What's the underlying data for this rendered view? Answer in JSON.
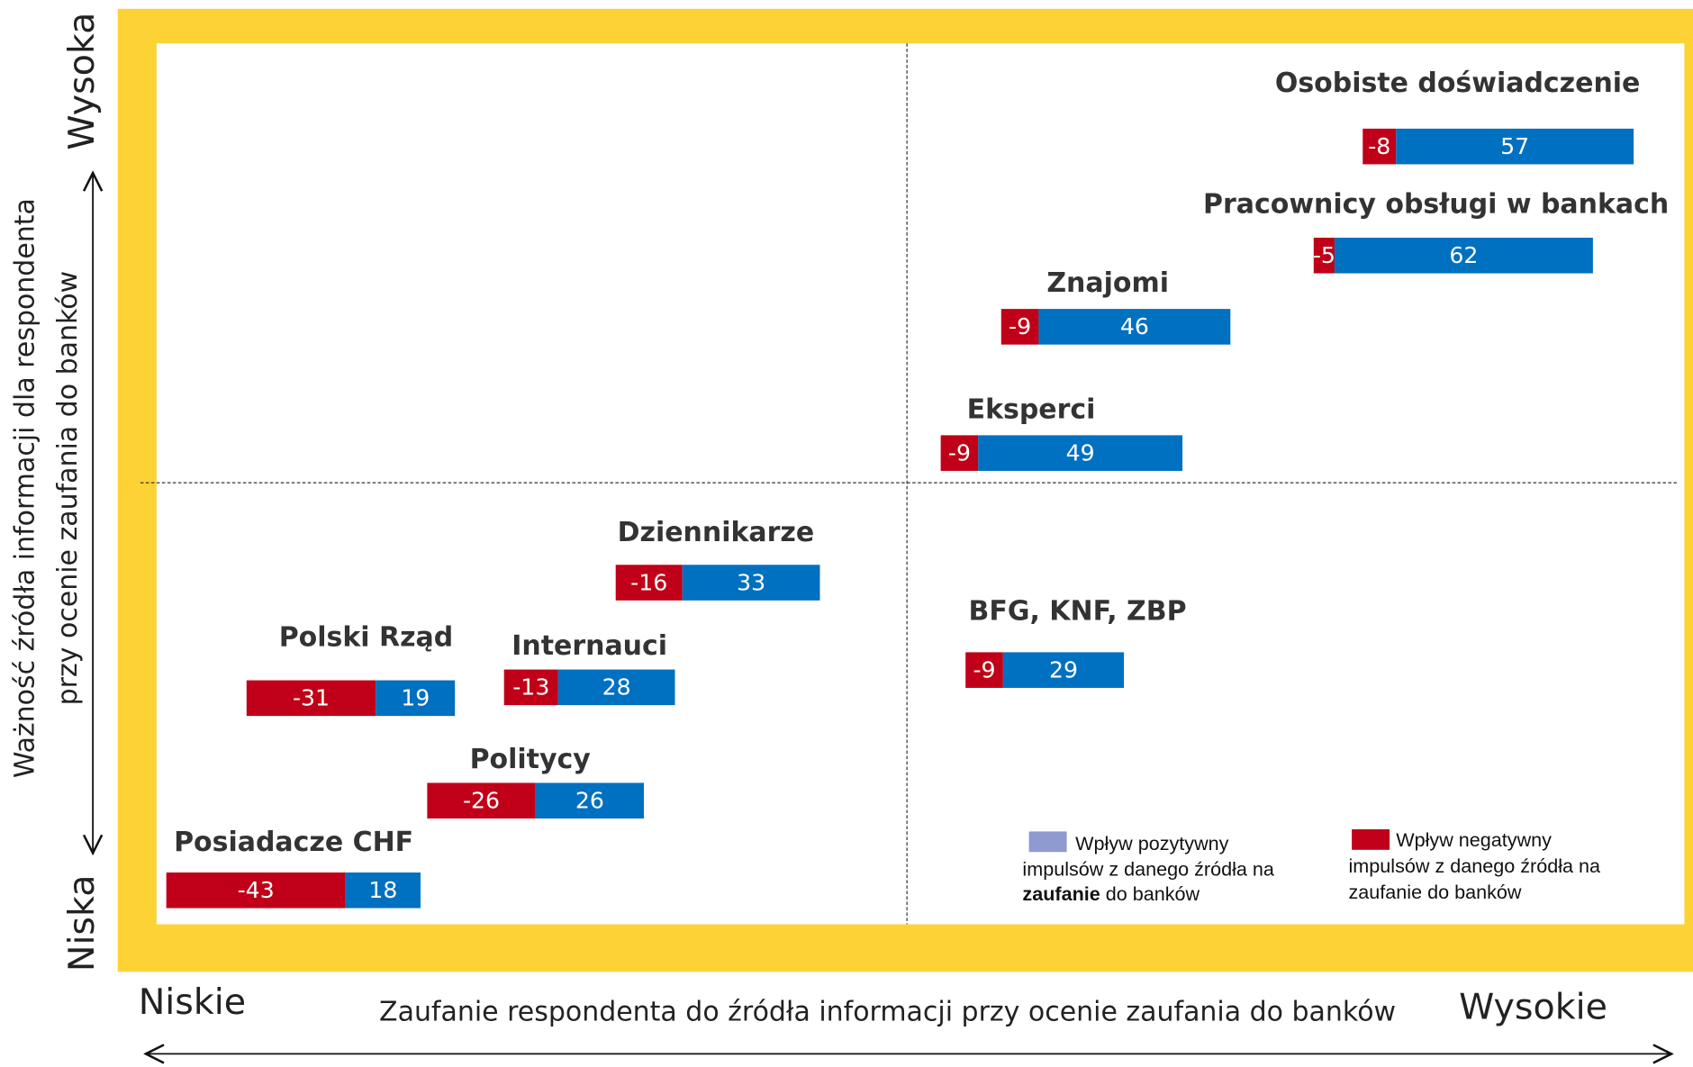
{
  "items": [
    {
      "label": "Osobiste doświadczenie",
      "negative": -8,
      "positive": 57
    },
    {
      "label": "Pracownicy obsługi w bankach",
      "negative": -5,
      "positive": 62
    },
    {
      "label": "Znajomi",
      "negative": -9,
      "positive": 46
    },
    {
      "label": "Eksperci",
      "negative": -9,
      "positive": 49
    },
    {
      "label": "Dziennikarze",
      "negative": -16,
      "positive": 33
    },
    {
      "label": "Polski Rząd",
      "negative": -31,
      "positive": 19
    },
    {
      "label": "Internauci",
      "negative": -13,
      "positive": 28
    },
    {
      "label": "Politycy",
      "negative": -26,
      "positive": 26
    },
    {
      "label": "Posiadacze CHF",
      "negative": -43,
      "positive": 18
    },
    {
      "label": "BFG, KNF, ZBP",
      "negative": -9,
      "positive": 29
    }
  ],
  "y_axis": {
    "title_line1": "Ważność źródła informacji dla respondenta",
    "title_line2": "przy ocenie zaufania do banków",
    "high": "Wysoka",
    "low": "Niska"
  },
  "x_axis": {
    "title": "Zaufanie respondenta do źródła informacji przy ocenie zaufania do banków",
    "low": "Niskie",
    "high": "Wysokie"
  },
  "legend": {
    "positive": {
      "color": "#8e9ad0",
      "line1": "Wpływ pozytywny",
      "line2": "impulsów z danego źródła na",
      "line3_bold": "zaufanie",
      "line3_rest": " do banków"
    },
    "negative": {
      "color": "#c00018",
      "line1": "Wpływ negatywny",
      "line2": "impulsów z danego źródła na",
      "line3": "zaufanie do banków"
    }
  },
  "colors": {
    "negative": "#c00018",
    "positive": "#0070c0"
  }
}
